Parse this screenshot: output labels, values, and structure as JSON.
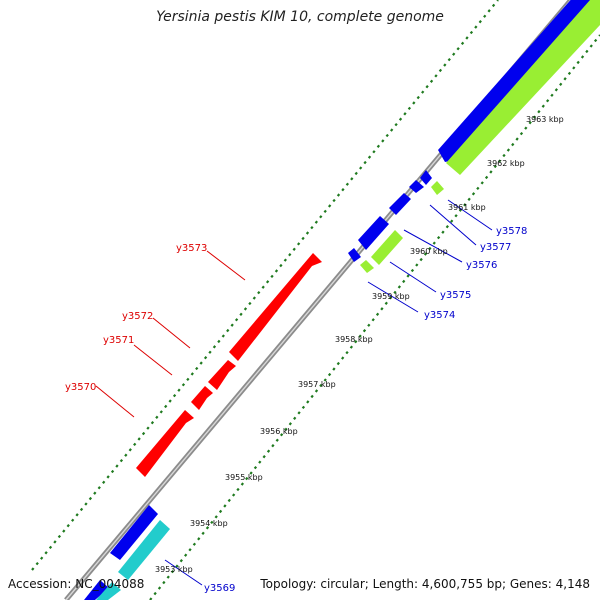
{
  "title": "Yersinia pestis KIM 10, complete genome",
  "footer": {
    "accession": "Accession: NC_004088",
    "topology": "Topology: circular; Length: 4,600,755 bp; Genes: 4,148"
  },
  "colors": {
    "backbone": "#8c8c8c",
    "forward_cds": "#ff0000",
    "reverse_blue": "#0000ee",
    "reverse_green": "#99ee33",
    "reverse_cyan": "#22cccc",
    "tick_green": "#1f7a1f",
    "label_red": "#dd0000",
    "label_blue": "#0000cc"
  },
  "ticks": [
    {
      "label": "3953 kbp"
    },
    {
      "label": "3954 kbp"
    },
    {
      "label": "3955 kbp"
    },
    {
      "label": "3956 kbp"
    },
    {
      "label": "3957 kbp"
    },
    {
      "label": "3958 kbp"
    },
    {
      "label": "3959 kbp"
    },
    {
      "label": "3960 kbp"
    },
    {
      "label": "3961 kbp"
    },
    {
      "label": "3962 kbp"
    },
    {
      "label": "3963 kbp"
    }
  ],
  "genes_forward": [
    {
      "name": "y3570"
    },
    {
      "name": "y3571"
    },
    {
      "name": "y3572"
    },
    {
      "name": "y3573"
    }
  ],
  "genes_reverse": [
    {
      "name": "y3569"
    },
    {
      "name": "y3574"
    },
    {
      "name": "y3575"
    },
    {
      "name": "y3576"
    },
    {
      "name": "y3577"
    },
    {
      "name": "y3578"
    }
  ]
}
